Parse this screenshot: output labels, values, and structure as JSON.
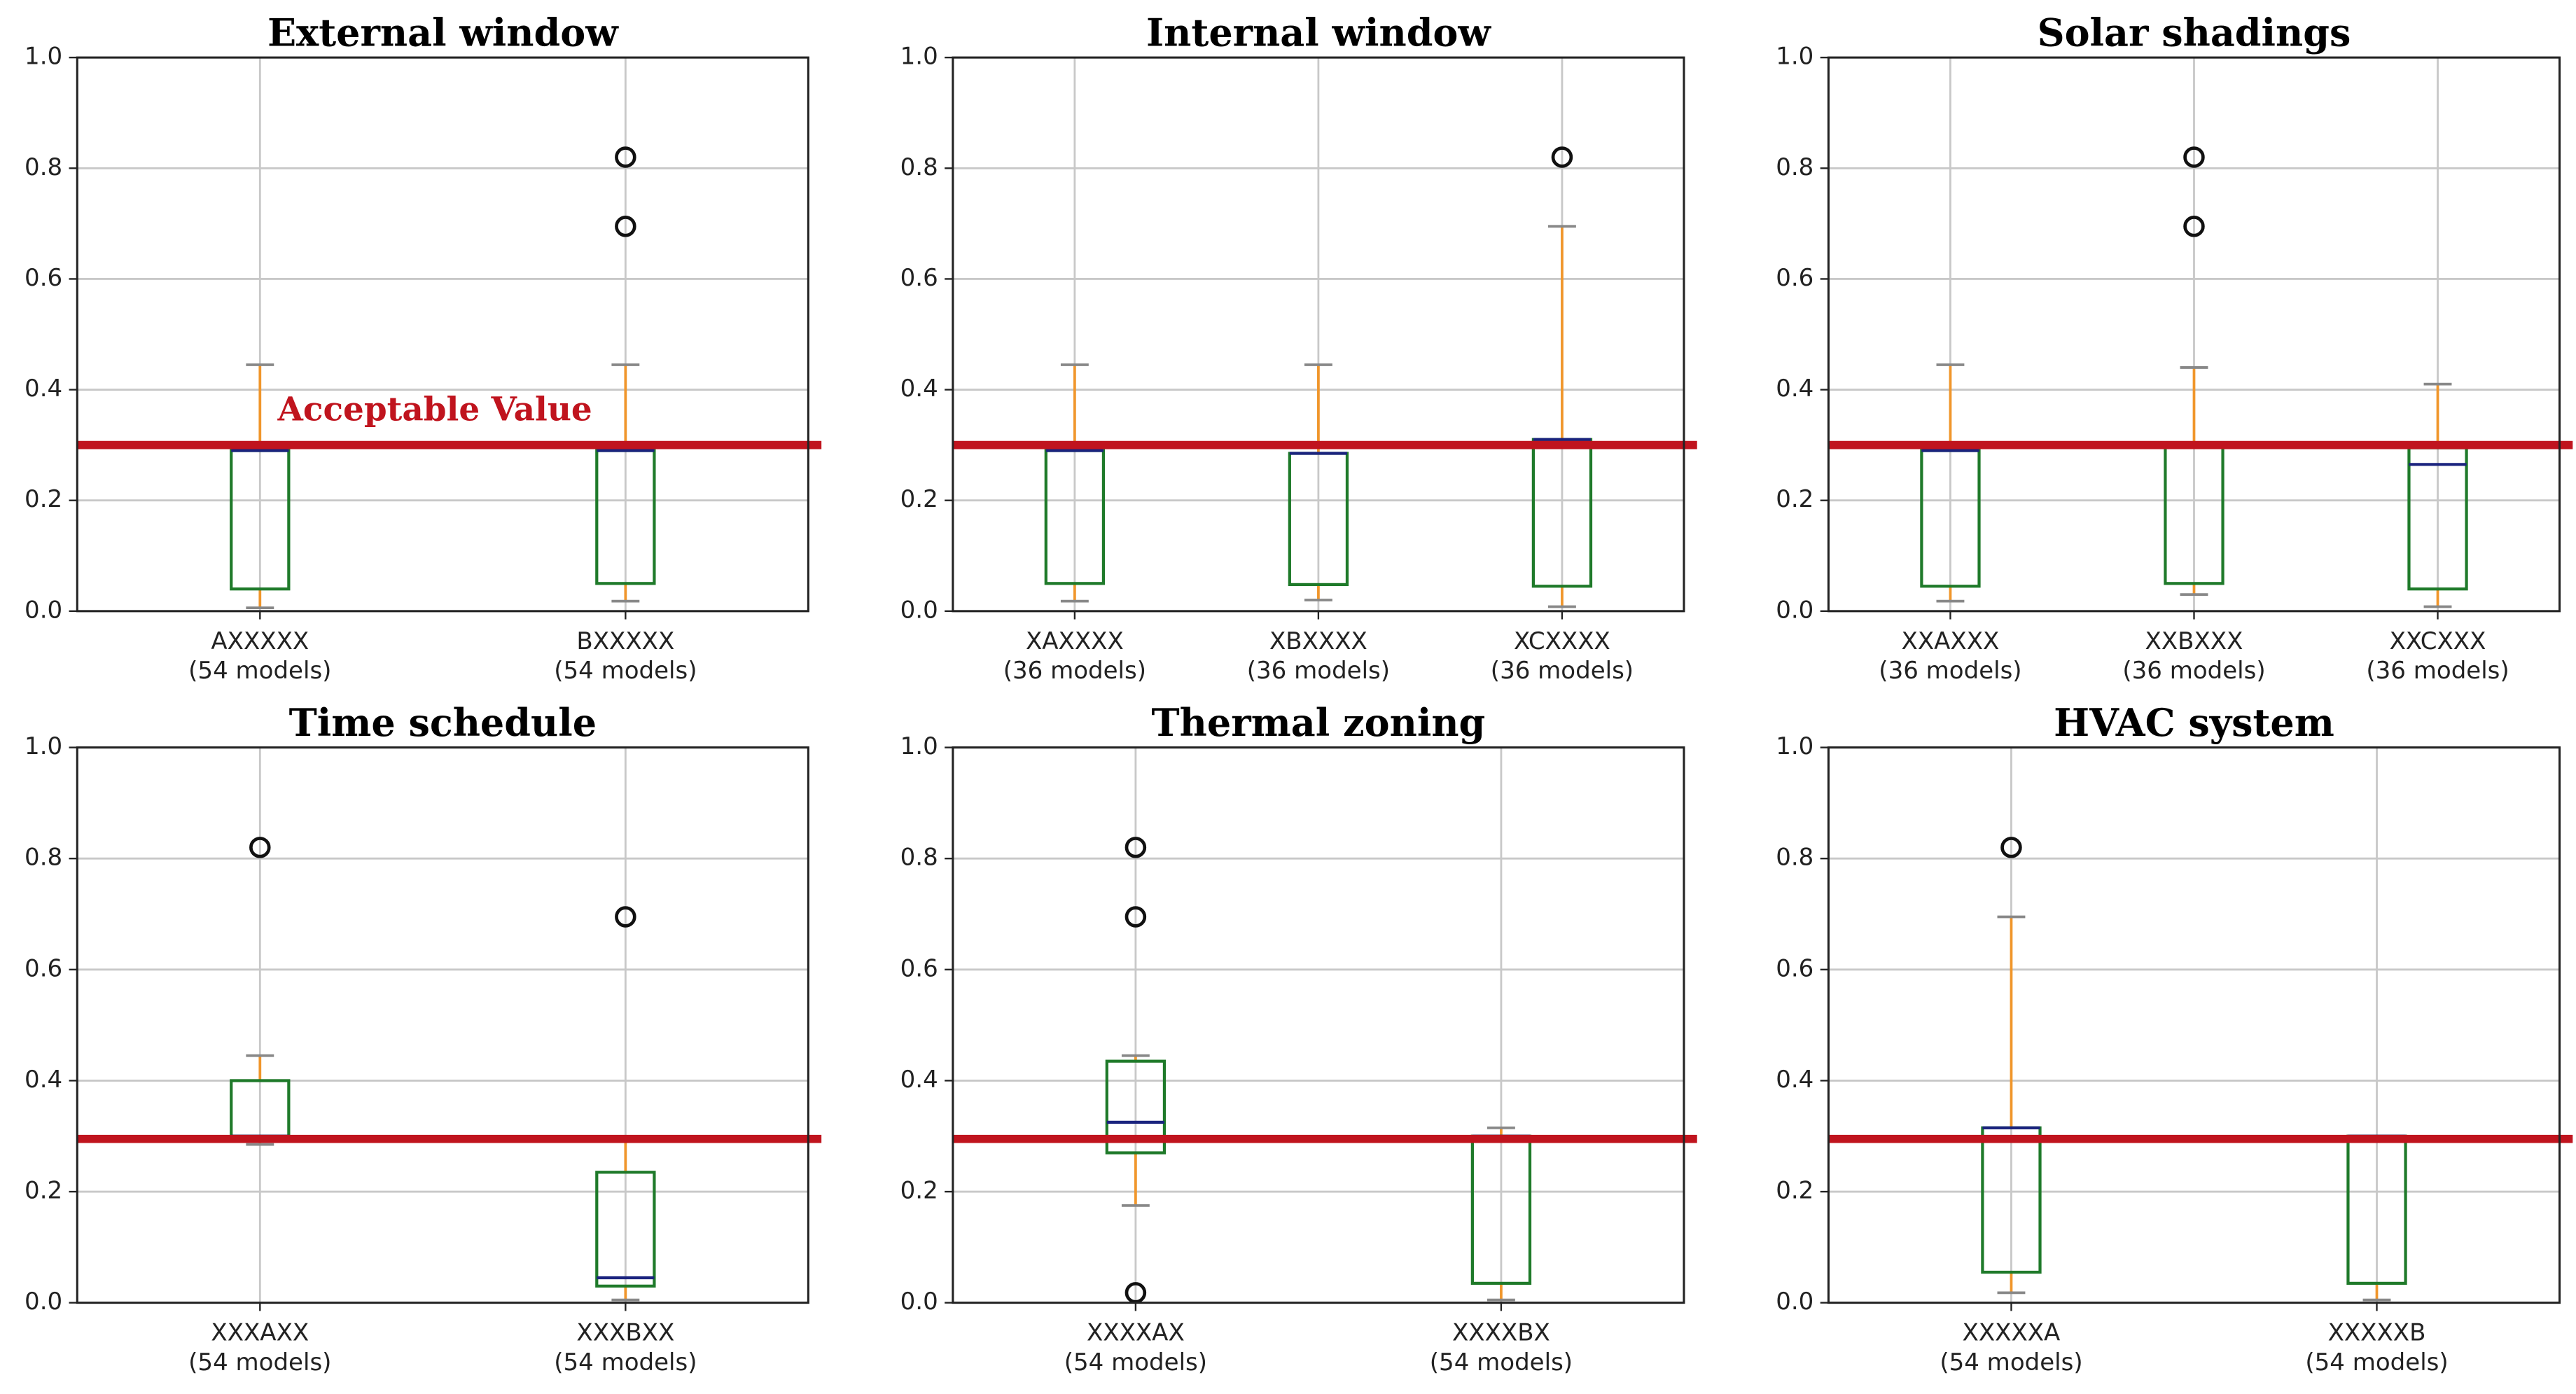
{
  "chart_data": [
    {
      "type": "box",
      "title": "External window",
      "categories": [
        "AXXXXX",
        "BXXXXX"
      ],
      "category_counts": [
        "(54 models)",
        "(54 models)"
      ],
      "boxes": [
        {
          "whislo": 0.006,
          "q1": 0.04,
          "median": 0.29,
          "q3": 0.29,
          "whishi": 0.445,
          "fliers": []
        },
        {
          "whislo": 0.018,
          "q1": 0.05,
          "median": 0.29,
          "q3": 0.29,
          "whishi": 0.445,
          "fliers": [
            0.82,
            0.695
          ]
        }
      ],
      "reference": {
        "value": 0.3,
        "label": "Acceptable Value",
        "color": "#c0141e"
      },
      "ylim": [
        0,
        1
      ],
      "yticks": [
        {
          "value": 0,
          "label": "0.0"
        },
        {
          "value": 0.2,
          "label": "0.2"
        },
        {
          "value": 0.4,
          "label": "0.4"
        },
        {
          "value": 0.6,
          "label": "0.6"
        },
        {
          "value": 0.8,
          "label": "0.8"
        },
        {
          "value": 1,
          "label": "1.0"
        }
      ],
      "grid": true
    },
    {
      "type": "box",
      "title": "Internal window",
      "categories": [
        "XAXXXX",
        "XBXXXX",
        "XCXXXX"
      ],
      "category_counts": [
        "(36 models)",
        "(36 models)",
        "(36 models)"
      ],
      "boxes": [
        {
          "whislo": 0.018,
          "q1": 0.05,
          "median": 0.29,
          "q3": 0.29,
          "whishi": 0.445,
          "fliers": []
        },
        {
          "whislo": 0.02,
          "q1": 0.048,
          "median": 0.285,
          "q3": 0.285,
          "whishi": 0.445,
          "fliers": []
        },
        {
          "whislo": 0.008,
          "q1": 0.045,
          "median": 0.31,
          "q3": 0.31,
          "whishi": 0.695,
          "fliers": [
            0.82
          ]
        }
      ],
      "reference": {
        "value": 0.3,
        "color": "#c0141e"
      },
      "ylim": [
        0,
        1
      ],
      "yticks": [
        {
          "value": 0,
          "label": "0.0"
        },
        {
          "value": 0.2,
          "label": "0.2"
        },
        {
          "value": 0.4,
          "label": "0.4"
        },
        {
          "value": 0.6,
          "label": "0.6"
        },
        {
          "value": 0.8,
          "label": "0.8"
        },
        {
          "value": 1,
          "label": "1.0"
        }
      ],
      "grid": true
    },
    {
      "type": "box",
      "title": "Solar shadings",
      "categories": [
        "XXAXXX",
        "XXBXXX",
        "XXCXXX"
      ],
      "category_counts": [
        "(36 models)",
        "(36 models)",
        "(36 models)"
      ],
      "boxes": [
        {
          "whislo": 0.018,
          "q1": 0.045,
          "median": 0.29,
          "q3": 0.29,
          "whishi": 0.445,
          "fliers": []
        },
        {
          "whislo": 0.03,
          "q1": 0.05,
          "median": 0.3,
          "q3": 0.3,
          "whishi": 0.44,
          "fliers": [
            0.82,
            0.695
          ]
        },
        {
          "whislo": 0.008,
          "q1": 0.04,
          "median": 0.265,
          "q3": 0.295,
          "whishi": 0.41,
          "fliers": []
        }
      ],
      "reference": {
        "value": 0.3,
        "color": "#c0141e"
      },
      "ylim": [
        0,
        1
      ],
      "yticks": [
        {
          "value": 0,
          "label": "0.0"
        },
        {
          "value": 0.2,
          "label": "0.2"
        },
        {
          "value": 0.4,
          "label": "0.4"
        },
        {
          "value": 0.6,
          "label": "0.6"
        },
        {
          "value": 0.8,
          "label": "0.8"
        },
        {
          "value": 1,
          "label": "1.0"
        }
      ],
      "grid": true
    },
    {
      "type": "box",
      "title": "Time schedule",
      "categories": [
        "XXXAXX",
        "XXXBXX"
      ],
      "category_counts": [
        "(54 models)",
        "(54 models)"
      ],
      "boxes": [
        {
          "whislo": 0.285,
          "q1": 0.3,
          "median": 0.3,
          "q3": 0.4,
          "whishi": 0.445,
          "fliers": [
            0.82
          ]
        },
        {
          "whislo": 0.005,
          "q1": 0.03,
          "median": 0.045,
          "q3": 0.235,
          "whishi": 0.29,
          "fliers": [
            0.695
          ]
        }
      ],
      "reference": {
        "value": 0.295,
        "color": "#c0141e"
      },
      "ylim": [
        0,
        1
      ],
      "yticks": [
        {
          "value": 0,
          "label": "0.0"
        },
        {
          "value": 0.2,
          "label": "0.2"
        },
        {
          "value": 0.4,
          "label": "0.4"
        },
        {
          "value": 0.6,
          "label": "0.6"
        },
        {
          "value": 0.8,
          "label": "0.8"
        },
        {
          "value": 1,
          "label": "1.0"
        }
      ],
      "grid": true
    },
    {
      "type": "box",
      "title": "Thermal zoning",
      "categories": [
        "XXXXAX",
        "XXXXBX"
      ],
      "category_counts": [
        "(54 models)",
        "(54 models)"
      ],
      "boxes": [
        {
          "whislo": 0.175,
          "q1": 0.27,
          "median": 0.325,
          "q3": 0.435,
          "whishi": 0.445,
          "fliers": [
            0.82,
            0.695,
            0.018
          ]
        },
        {
          "whislo": 0.005,
          "q1": 0.035,
          "median": 0.3,
          "q3": 0.3,
          "whishi": 0.315,
          "fliers": []
        }
      ],
      "reference": {
        "value": 0.295,
        "color": "#c0141e"
      },
      "ylim": [
        0,
        1
      ],
      "yticks": [
        {
          "value": 0,
          "label": "0.0"
        },
        {
          "value": 0.2,
          "label": "0.2"
        },
        {
          "value": 0.4,
          "label": "0.4"
        },
        {
          "value": 0.6,
          "label": "0.6"
        },
        {
          "value": 0.8,
          "label": "0.8"
        },
        {
          "value": 1,
          "label": "1.0"
        }
      ],
      "grid": true
    },
    {
      "type": "box",
      "title": "HVAC system",
      "categories": [
        "XXXXXA",
        "XXXXXB"
      ],
      "category_counts": [
        "(54 models)",
        "(54 models)"
      ],
      "boxes": [
        {
          "whislo": 0.018,
          "q1": 0.055,
          "median": 0.315,
          "q3": 0.315,
          "whishi": 0.695,
          "fliers": [
            0.82
          ]
        },
        {
          "whislo": 0.005,
          "q1": 0.035,
          "median": 0.3,
          "q3": 0.3,
          "whishi": 0.3,
          "fliers": []
        }
      ],
      "reference": {
        "value": 0.295,
        "color": "#c0141e"
      },
      "ylim": [
        0,
        1
      ],
      "yticks": [
        {
          "value": 0,
          "label": "0.0"
        },
        {
          "value": 0.2,
          "label": "0.2"
        },
        {
          "value": 0.4,
          "label": "0.4"
        },
        {
          "value": 0.6,
          "label": "0.6"
        },
        {
          "value": 0.8,
          "label": "0.8"
        },
        {
          "value": 1,
          "label": "1.0"
        }
      ],
      "grid": true
    }
  ]
}
